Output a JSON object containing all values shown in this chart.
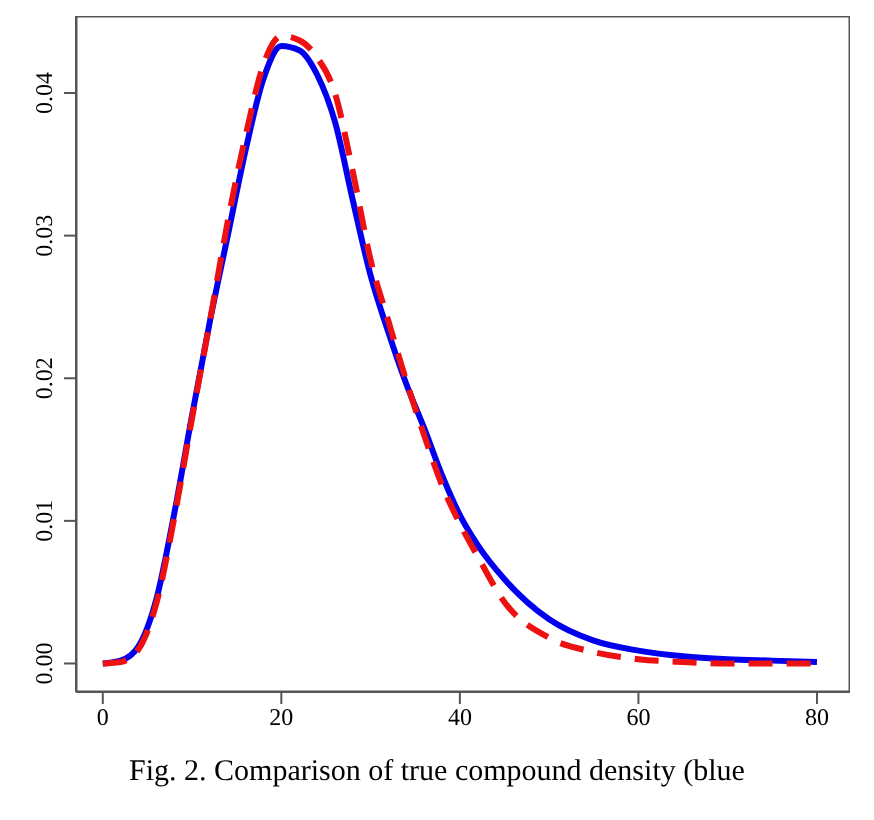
{
  "chart_data": {
    "type": "line",
    "x": [
      0,
      2,
      4,
      6,
      8,
      10,
      12,
      14,
      16,
      18,
      20,
      22,
      24,
      26,
      28,
      30,
      32,
      34,
      36,
      38,
      40,
      42,
      45,
      50,
      55,
      60,
      65,
      70,
      75,
      80
    ],
    "series": [
      {
        "color": "#0000ee",
        "line_style": "solid",
        "values": [
          0,
          0.0002,
          0.0012,
          0.0045,
          0.0105,
          0.0174,
          0.024,
          0.03,
          0.036,
          0.041,
          0.0433,
          0.043,
          0.0413,
          0.038,
          0.0325,
          0.0272,
          0.0232,
          0.0196,
          0.0165,
          0.0132,
          0.0104,
          0.0083,
          0.0059,
          0.0031,
          0.0016,
          0.0009,
          0.0005,
          0.0003,
          0.0002,
          0.0001
        ]
      },
      {
        "color": "#ee1111",
        "line_style": "dashed",
        "values": [
          0,
          0.0001,
          0.001,
          0.0042,
          0.0102,
          0.0172,
          0.024,
          0.031,
          0.037,
          0.042,
          0.044,
          0.0437,
          0.0425,
          0.04,
          0.0345,
          0.0283,
          0.024,
          0.0198,
          0.016,
          0.0125,
          0.0098,
          0.0075,
          0.0043,
          0.0018,
          0.0008,
          0.0003,
          0.0001,
          0,
          0,
          0
        ]
      }
    ],
    "xlim": [
      -3,
      83.7
    ],
    "xticks": [
      0,
      20,
      40,
      60,
      80
    ],
    "ylim": [
      -0.002,
      0.0454
    ],
    "yticks": [
      {
        "value": 0,
        "label": "0.00"
      },
      {
        "value": 0.01,
        "label": "0.01"
      },
      {
        "value": 0.02,
        "label": "0.02"
      },
      {
        "value": 0.03,
        "label": "0.03"
      },
      {
        "value": 0.04,
        "label": "0.04"
      }
    ],
    "marker": "none",
    "annotations": [
      "Fig. 2. Comparison of true compound density (blue"
    ]
  }
}
